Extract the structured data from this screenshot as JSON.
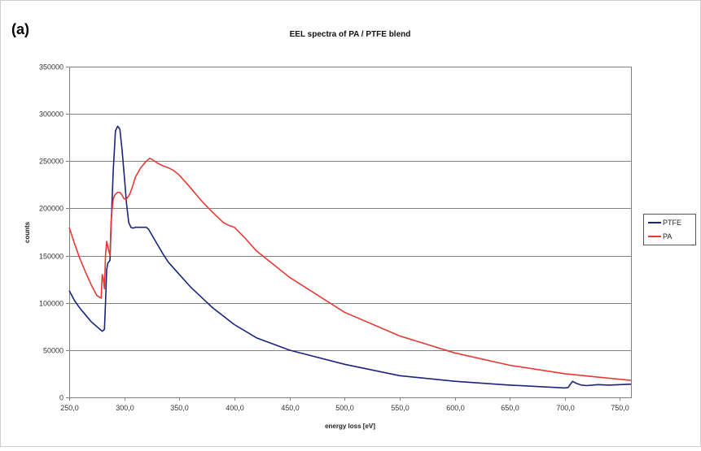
{
  "panel_label": "(a)",
  "chart_data": {
    "type": "line",
    "title": "EEL spectra of PA / PTFE blend",
    "xlabel": "energy loss [eV]",
    "ylabel": "counts",
    "xlim": [
      250,
      760
    ],
    "ylim": [
      0,
      350000
    ],
    "grid": true,
    "legend_position": "right",
    "x_ticks": [
      250,
      300,
      350,
      400,
      450,
      500,
      550,
      600,
      650,
      700,
      750
    ],
    "x_tick_labels": [
      "250,0",
      "300,0",
      "350,0",
      "400,0",
      "450,0",
      "500,0",
      "550,0",
      "600,0",
      "650,0",
      "700,0",
      "750,0"
    ],
    "y_ticks": [
      0,
      50000,
      100000,
      150000,
      200000,
      250000,
      300000,
      350000
    ],
    "y_tick_labels": [
      "0",
      "50000",
      "100000",
      "150000",
      "200000",
      "250000",
      "300000",
      "350000"
    ],
    "series": [
      {
        "name": "PTFE",
        "color": "#1a237e",
        "x": [
          250,
          255,
          260,
          265,
          270,
          275,
          280,
          282,
          283,
          284,
          285,
          287,
          288,
          290,
          292,
          294,
          296,
          298,
          300,
          302,
          304,
          306,
          308,
          310,
          315,
          320,
          322,
          325,
          330,
          335,
          340,
          350,
          360,
          380,
          400,
          420,
          450,
          500,
          550,
          600,
          650,
          700,
          703,
          705,
          707,
          710,
          715,
          720,
          730,
          740,
          750,
          760
        ],
        "y": [
          113000,
          102000,
          94000,
          87000,
          80000,
          75000,
          70000,
          72000,
          100000,
          135000,
          142000,
          145000,
          180000,
          240000,
          282000,
          287000,
          284000,
          262000,
          235000,
          205000,
          185000,
          180000,
          179000,
          180000,
          180000,
          180000,
          178000,
          172000,
          162000,
          152000,
          143000,
          130000,
          117000,
          95000,
          77000,
          63000,
          50000,
          35000,
          23000,
          17000,
          13000,
          10000,
          10500,
          14000,
          17000,
          15000,
          13000,
          12500,
          13500,
          13000,
          13500,
          14000
        ]
      },
      {
        "name": "PA",
        "color": "#e53935",
        "x": [
          250,
          255,
          260,
          265,
          270,
          275,
          279,
          280,
          281,
          282,
          283,
          284,
          285,
          286,
          287,
          288,
          289,
          290,
          291,
          292,
          294,
          296,
          298,
          300,
          302,
          305,
          308,
          310,
          315,
          320,
          323,
          325,
          330,
          335,
          340,
          345,
          350,
          360,
          370,
          380,
          390,
          395,
          400,
          410,
          420,
          450,
          500,
          550,
          600,
          650,
          700,
          760
        ],
        "y": [
          180000,
          162000,
          146000,
          132000,
          119000,
          108000,
          105000,
          130000,
          125000,
          115000,
          150000,
          165000,
          160000,
          155000,
          150000,
          185000,
          200000,
          210000,
          213000,
          215000,
          217000,
          217000,
          214000,
          210000,
          210000,
          215000,
          225000,
          233000,
          243000,
          250000,
          253000,
          252000,
          248000,
          245000,
          243000,
          240000,
          235000,
          222000,
          208000,
          196000,
          185000,
          182000,
          180000,
          168000,
          155000,
          127000,
          90000,
          65000,
          47000,
          34000,
          25000,
          18000
        ]
      }
    ]
  }
}
